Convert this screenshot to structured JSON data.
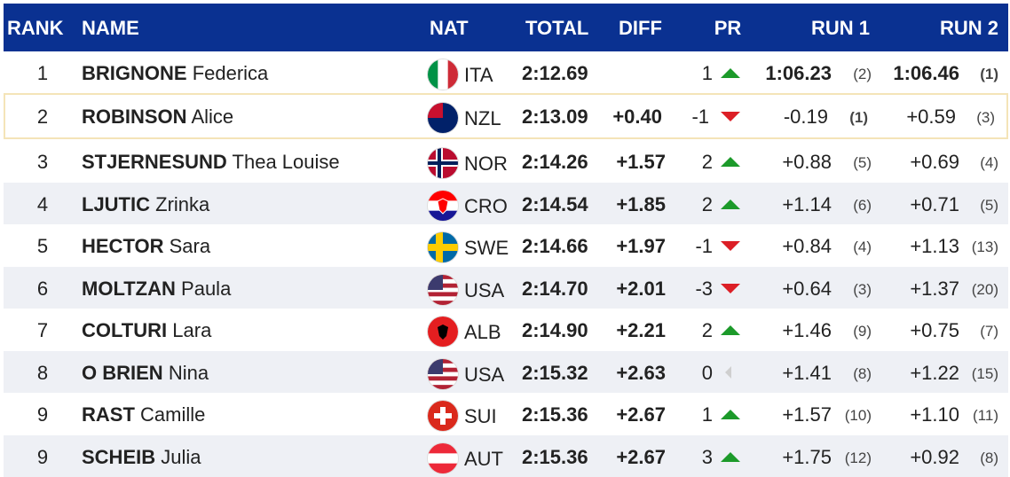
{
  "header": [
    "RANK",
    "NAME",
    "NAT",
    "TOTAL",
    "DIFF",
    "PR",
    "RUN 1",
    "RUN 2"
  ],
  "highlight_row": 1,
  "rows": [
    {
      "rank": "1",
      "surname": "BRIGNONE",
      "first": "Federica",
      "nat": "ITA",
      "total": "2:12.69",
      "diff": null,
      "pr": "1",
      "trend": "up",
      "run1": "1:06.23",
      "run1_rank": "(2)",
      "run2": "1:06.46",
      "run2_rank": "(1)",
      "flag": {
        "bands": [
          "#009246",
          "#ffffff",
          "#ce2b37"
        ],
        "dir": "v"
      }
    },
    {
      "rank": "2",
      "surname": "ROBINSON",
      "first": "Alice",
      "nat": "NZL",
      "total": "2:13.09",
      "diff": "+0.40",
      "pr": "-1",
      "trend": "down",
      "run1": "-0.19",
      "run1_rank": "(1)",
      "run2": "+0.59",
      "run2_rank": "(3)",
      "flag": {
        "bands": [
          "#012169"
        ],
        "dir": "h",
        "canton": "#c8102e"
      }
    },
    {
      "rank": "3",
      "surname": "STJERNESUND",
      "first": "Thea Louise",
      "nat": "NOR",
      "total": "2:14.26",
      "diff": "+1.57",
      "pr": "2",
      "trend": "up",
      "run1": "+0.88",
      "run1_rank": "(5)",
      "run2": "+0.69",
      "run2_rank": "(4)",
      "flag": {
        "bands": [
          "#ba0c2f"
        ],
        "dir": "h",
        "nordic": [
          "#ffffff",
          "#00205b"
        ]
      }
    },
    {
      "rank": "4",
      "surname": "LJUTIC",
      "first": "Zrinka",
      "nat": "CRO",
      "total": "2:14.54",
      "diff": "+1.85",
      "pr": "2",
      "trend": "up",
      "run1": "+1.14",
      "run1_rank": "(6)",
      "run2": "+0.71",
      "run2_rank": "(5)",
      "flag": {
        "bands": [
          "#ff0000",
          "#ffffff",
          "#171796"
        ],
        "dir": "h",
        "emblem": "#ff0000"
      }
    },
    {
      "rank": "5",
      "surname": "HECTOR",
      "first": "Sara",
      "nat": "SWE",
      "total": "2:14.66",
      "diff": "+1.97",
      "pr": "-1",
      "trend": "down",
      "run1": "+0.84",
      "run1_rank": "(4)",
      "run2": "+1.13",
      "run2_rank": "(13)",
      "flag": {
        "bands": [
          "#006aa7"
        ],
        "dir": "h",
        "nordic": [
          "#fecc00"
        ]
      }
    },
    {
      "rank": "6",
      "surname": "MOLTZAN",
      "first": "Paula",
      "nat": "USA",
      "total": "2:14.70",
      "diff": "+2.01",
      "pr": "-3",
      "trend": "down",
      "run1": "+0.64",
      "run1_rank": "(3)",
      "run2": "+1.37",
      "run2_rank": "(20)",
      "flag": {
        "bands": [
          "#b22234",
          "#ffffff",
          "#b22234",
          "#ffffff",
          "#b22234",
          "#ffffff",
          "#b22234"
        ],
        "dir": "h",
        "canton": "#3c3b6e"
      }
    },
    {
      "rank": "7",
      "surname": "COLTURI",
      "first": "Lara",
      "nat": "ALB",
      "total": "2:14.90",
      "diff": "+2.21",
      "pr": "2",
      "trend": "up",
      "run1": "+1.46",
      "run1_rank": "(9)",
      "run2": "+0.75",
      "run2_rank": "(7)",
      "flag": {
        "bands": [
          "#e41e20"
        ],
        "dir": "h",
        "emblem": "#000000"
      }
    },
    {
      "rank": "8",
      "surname": "O BRIEN",
      "first": "Nina",
      "nat": "USA",
      "total": "2:15.32",
      "diff": "+2.63",
      "pr": "0",
      "trend": "same",
      "run1": "+1.41",
      "run1_rank": "(8)",
      "run2": "+1.22",
      "run2_rank": "(15)",
      "flag": {
        "bands": [
          "#b22234",
          "#ffffff",
          "#b22234",
          "#ffffff",
          "#b22234",
          "#ffffff",
          "#b22234"
        ],
        "dir": "h",
        "canton": "#3c3b6e"
      }
    },
    {
      "rank": "9",
      "surname": "RAST",
      "first": "Camille",
      "nat": "SUI",
      "total": "2:15.36",
      "diff": "+2.67",
      "pr": "1",
      "trend": "up",
      "run1": "+1.57",
      "run1_rank": "(10)",
      "run2": "+1.10",
      "run2_rank": "(11)",
      "flag": {
        "bands": [
          "#da291c"
        ],
        "dir": "h",
        "cross": "#ffffff"
      }
    },
    {
      "rank": "9",
      "surname": "SCHEIB",
      "first": "Julia",
      "nat": "AUT",
      "total": "2:15.36",
      "diff": "+2.67",
      "pr": "3",
      "trend": "up",
      "run1": "+1.75",
      "run1_rank": "(12)",
      "run2": "+0.92",
      "run2_rank": "(8)",
      "flag": {
        "bands": [
          "#ed2939",
          "#ffffff",
          "#ed2939"
        ],
        "dir": "h"
      }
    }
  ]
}
